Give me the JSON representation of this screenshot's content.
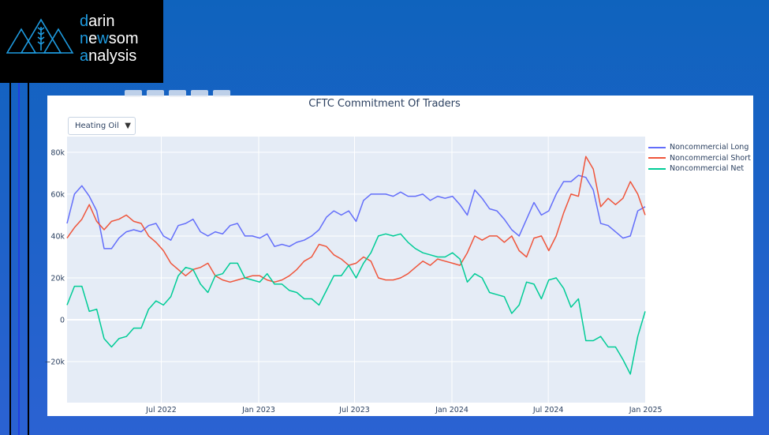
{
  "brand": {
    "line1_hl": "d",
    "line1": "arin",
    "line2_hl_a": "n",
    "line2_a": "e",
    "line2_hl_b": "w",
    "line2_b": "som",
    "line3_hl": "a",
    "line3": "nalysis",
    "logo_color": "#1e9be0"
  },
  "dropdown": {
    "selected": "Heating Oil",
    "icon": "triangle-down-icon"
  },
  "chart_data": {
    "type": "line",
    "title": "CFTC Commitment Of Traders",
    "xlabel": "",
    "ylabel": "",
    "ylim": [
      -39600,
      87500
    ],
    "grid": true,
    "legend_placement": "right",
    "y_ticks": [
      {
        "v": -20000,
        "label": "−20k"
      },
      {
        "v": 0,
        "label": "0"
      },
      {
        "v": 20000,
        "label": "20k"
      },
      {
        "v": 40000,
        "label": "40k"
      },
      {
        "v": 60000,
        "label": "60k"
      },
      {
        "v": 80000,
        "label": "80k"
      }
    ],
    "x_ticks": [
      {
        "date": "2022-07-01",
        "label": "Jul 2022"
      },
      {
        "date": "2023-01-01",
        "label": "Jan 2023"
      },
      {
        "date": "2023-07-01",
        "label": "Jul 2023"
      },
      {
        "date": "2024-01-01",
        "label": "Jan 2024"
      },
      {
        "date": "2024-07-01",
        "label": "Jul 2024"
      },
      {
        "date": "2025-01-01",
        "label": "Jan 2025"
      }
    ],
    "x_start": "2022-01-04",
    "x_step_days": 14,
    "series": [
      {
        "name": "Noncommercial Long",
        "color": "#636efa",
        "values": [
          46,
          60,
          64,
          59,
          52,
          34,
          34,
          39,
          42,
          43,
          42,
          45,
          46,
          40,
          38,
          45,
          46,
          48,
          42,
          40,
          42,
          41,
          45,
          46,
          40,
          40,
          39,
          41,
          35,
          36,
          35,
          37,
          38,
          40,
          43,
          49,
          52,
          50,
          52,
          47,
          57,
          60,
          60,
          60,
          59,
          61,
          59,
          59,
          60,
          57,
          59,
          58,
          59,
          55,
          50,
          62,
          58,
          53,
          52,
          48,
          43,
          40,
          48,
          56,
          50,
          52,
          60,
          66,
          66,
          69,
          68,
          62,
          46,
          45,
          42,
          39,
          40,
          52,
          54
        ]
      },
      {
        "name": "Noncommercial Short",
        "color": "#ef553b",
        "values": [
          39,
          44,
          48,
          55,
          47,
          43,
          47,
          48,
          50,
          47,
          46,
          40,
          37,
          33,
          27,
          24,
          21,
          24,
          25,
          27,
          21,
          19,
          18,
          19,
          20,
          21,
          21,
          19,
          18,
          19,
          21,
          24,
          28,
          30,
          36,
          35,
          31,
          29,
          26,
          27,
          30,
          28,
          20,
          19,
          19,
          20,
          22,
          25,
          28,
          26,
          29,
          28,
          27,
          26,
          32,
          40,
          38,
          40,
          40,
          37,
          40,
          33,
          30,
          39,
          40,
          33,
          40,
          51,
          60,
          59,
          78,
          72,
          54,
          58,
          55,
          58,
          66,
          60,
          50
        ]
      },
      {
        "name": "Noncommercial Net",
        "color": "#00cc96",
        "values": [
          7,
          16,
          16,
          4,
          5,
          -9,
          -13,
          -9,
          -8,
          -4,
          -4,
          5,
          9,
          7,
          11,
          21,
          25,
          24,
          17,
          13,
          21,
          22,
          27,
          27,
          20,
          19,
          18,
          22,
          17,
          17,
          14,
          13,
          10,
          10,
          7,
          14,
          21,
          21,
          26,
          20,
          27,
          32,
          40,
          41,
          40,
          41,
          37,
          34,
          32,
          31,
          30,
          30,
          32,
          29,
          18,
          22,
          20,
          13,
          12,
          11,
          3,
          7,
          18,
          17,
          10,
          19,
          20,
          15,
          6,
          10,
          -10,
          -10,
          -8,
          -13,
          -13,
          -19,
          -26,
          -8,
          4
        ]
      }
    ],
    "value_unit_multiplier": 1000
  }
}
